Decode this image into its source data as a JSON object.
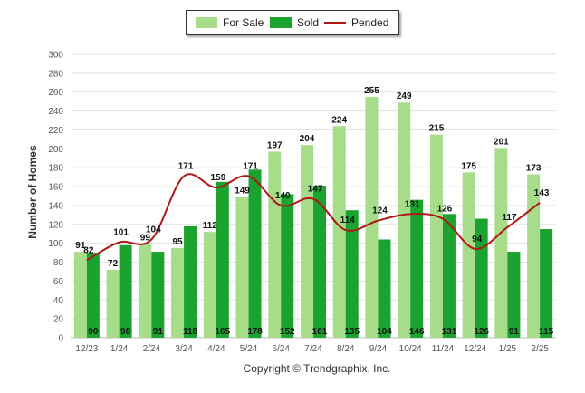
{
  "legend": {
    "for_sale": "For Sale",
    "sold": "Sold",
    "pended": "Pended"
  },
  "colors": {
    "for_sale": "#a6dc8a",
    "sold": "#1aa32e",
    "pended": "#b01818",
    "grid": "#e2e2e2",
    "axis_text": "#555555"
  },
  "copyright": "Copyright © Trendgraphix, Inc.",
  "chart_data": {
    "type": "bar",
    "ylabel": "Number of Homes",
    "xlabel": "",
    "ylim": [
      0,
      300
    ],
    "yticks": [
      0,
      20,
      40,
      60,
      80,
      100,
      120,
      140,
      160,
      180,
      200,
      220,
      240,
      260,
      280,
      300
    ],
    "grid": true,
    "legend_position": "top-center",
    "categories": [
      "12/23",
      "1/24",
      "2/24",
      "3/24",
      "4/24",
      "5/24",
      "6/24",
      "7/24",
      "8/24",
      "9/24",
      "10/24",
      "11/24",
      "12/24",
      "1/25",
      "2/25"
    ],
    "series": [
      {
        "name": "For Sale",
        "kind": "bar",
        "values": [
          91,
          72,
          99,
          95,
          112,
          149,
          197,
          204,
          224,
          255,
          249,
          215,
          175,
          201,
          173
        ]
      },
      {
        "name": "Sold",
        "kind": "bar",
        "values": [
          90,
          98,
          91,
          118,
          165,
          178,
          152,
          161,
          135,
          104,
          146,
          131,
          126,
          91,
          115
        ]
      },
      {
        "name": "Pended",
        "kind": "line",
        "values": [
          82,
          101,
          104,
          171,
          159,
          171,
          140,
          147,
          114,
          124,
          131,
          126,
          94,
          117,
          143
        ]
      }
    ]
  }
}
